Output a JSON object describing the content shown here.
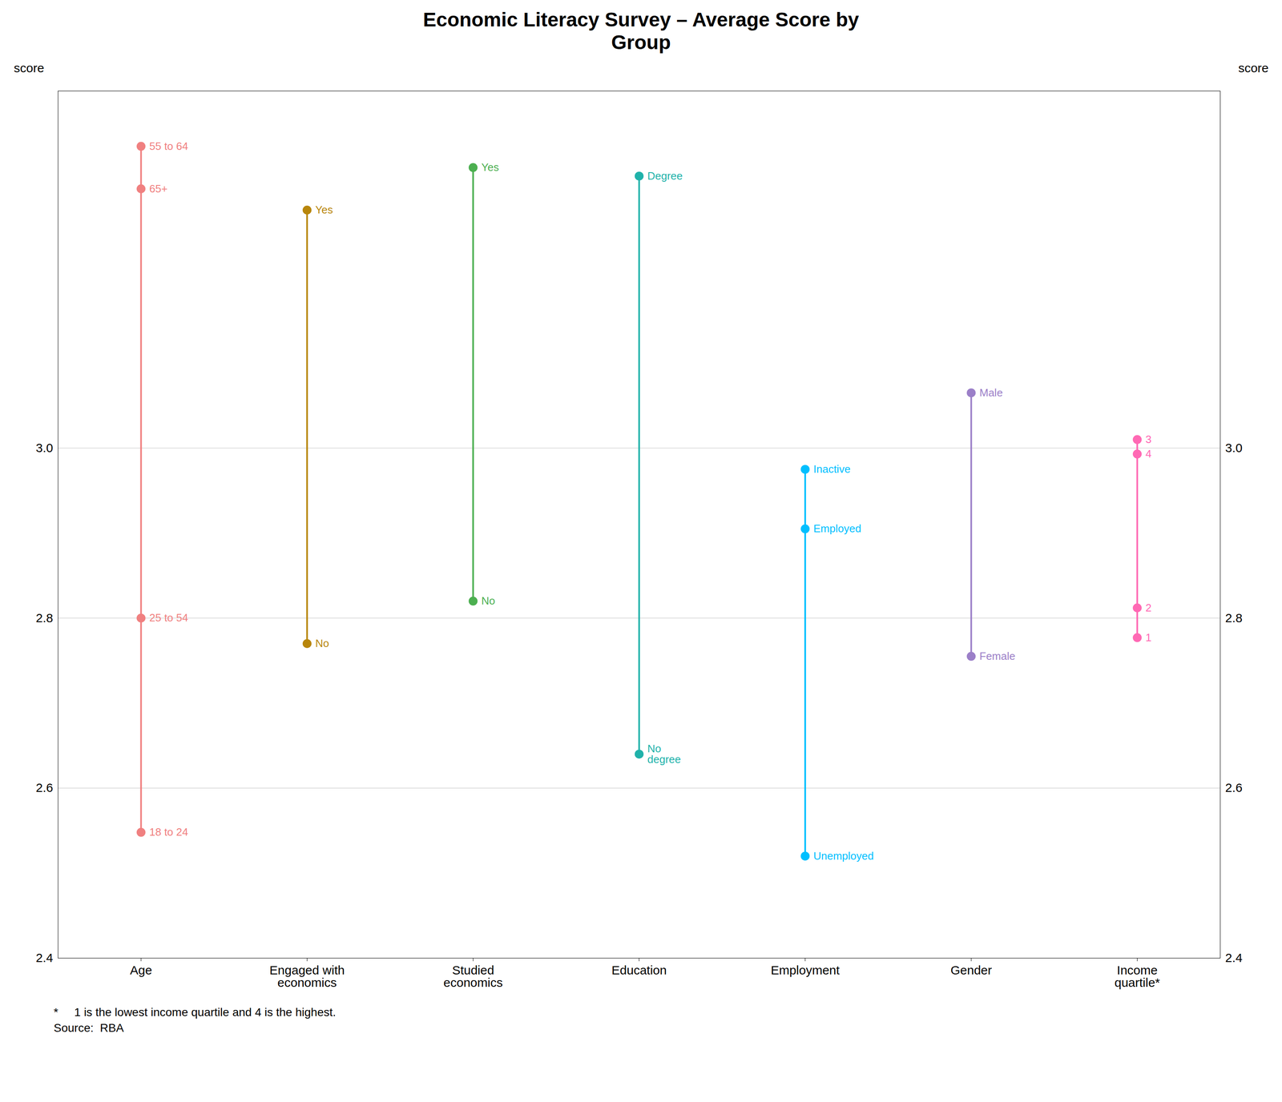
{
  "chart_data": {
    "type": "dot_range",
    "title": "Economic Literacy Survey – Average Score by\nGroup",
    "ylabel": "score",
    "y2label": "score",
    "ylim": [
      2.4,
      3.42
    ],
    "yticks": [
      2.4,
      2.6,
      2.8,
      {
        "value": 3.0,
        "label": "3.0"
      }
    ],
    "y2lim": [
      2.4,
      3.42
    ],
    "y2ticks": [
      2.4,
      2.6,
      2.8,
      {
        "value": 3.0,
        "label": "3.0"
      }
    ],
    "grid": true,
    "categories": [
      "Age",
      "Engaged with\neconomics",
      "Studied\neconomics",
      "Education",
      "Employment",
      "Gender",
      "Income\nquartile*"
    ],
    "groups": [
      {
        "color": "#F08080",
        "labels": [
          "55 to 64",
          "65+",
          "25 to 54",
          "18 to 24"
        ],
        "values": [
          3.355,
          3.305,
          2.8,
          2.548
        ]
      },
      {
        "color": "#B8860B",
        "labels": [
          "Yes",
          "No"
        ],
        "values": [
          3.28,
          2.77
        ]
      },
      {
        "color": "#4CAF50",
        "labels": [
          "Yes",
          "No"
        ],
        "values": [
          3.33,
          2.82
        ]
      },
      {
        "color": "#20B2AA",
        "labels": [
          "Degree",
          "No\ndegree"
        ],
        "values": [
          3.32,
          2.64
        ]
      },
      {
        "color": "#00BFFF",
        "labels": [
          "Inactive",
          "Employed",
          "Unemployed"
        ],
        "values": [
          2.975,
          2.905,
          2.52
        ]
      },
      {
        "color": "#9B7FC8",
        "labels": [
          "Male",
          "Female"
        ],
        "values": [
          3.065,
          2.755
        ]
      },
      {
        "color": "#FF69B4",
        "labels": [
          "3",
          "4",
          "2",
          "1"
        ],
        "values": [
          3.01,
          2.993,
          2.812,
          2.777
        ]
      }
    ],
    "annotations": [
      "*     1 is the lowest income quartile and 4 is the highest.",
      "Source:  RBA"
    ]
  }
}
